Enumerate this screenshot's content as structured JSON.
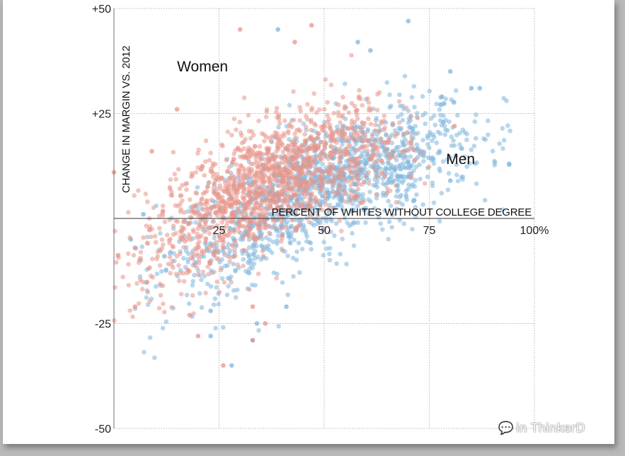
{
  "chart_data": {
    "type": "scatter",
    "ylabel": "CHANGE IN MARGIN VS. 2012",
    "xlabel": "PERCENT OF WHITES WITHOUT COLLEGE DEGREE",
    "xlim": [
      0,
      100
    ],
    "ylim": [
      -50,
      50
    ],
    "x_ticks": [
      {
        "value": 25,
        "label": "25"
      },
      {
        "value": 50,
        "label": "50"
      },
      {
        "value": 75,
        "label": "75"
      },
      {
        "value": 100,
        "label": "100%"
      }
    ],
    "y_ticks": [
      {
        "value": 50,
        "label": "+50"
      },
      {
        "value": 25,
        "label": "+25"
      },
      {
        "value": -25,
        "label": "-25"
      },
      {
        "value": -50,
        "label": "-50"
      }
    ],
    "grid": true,
    "grid_style": "dotted",
    "series": [
      {
        "name": "Men",
        "color": "#7fb6dc",
        "trend": {
          "x": [
            5,
            25,
            45,
            60,
            75,
            90
          ],
          "y": [
            -15,
            -6,
            6,
            12,
            16,
            20
          ]
        },
        "spread_x": [
          5,
          95
        ],
        "spread_y_sd": 7,
        "points": [
          {
            "x": 70,
            "y": 47
          },
          {
            "x": 39,
            "y": 45
          },
          {
            "x": 85,
            "y": 31
          },
          {
            "x": 80,
            "y": 35
          },
          {
            "x": 94,
            "y": 13
          },
          {
            "x": 80,
            "y": 9
          },
          {
            "x": 7,
            "y": 1
          },
          {
            "x": 4,
            "y": -5
          },
          {
            "x": 5,
            "y": -7
          },
          {
            "x": 12,
            "y": -9
          },
          {
            "x": 23,
            "y": -22
          },
          {
            "x": 23,
            "y": -28
          },
          {
            "x": 28,
            "y": -35
          },
          {
            "x": 34,
            "y": -25
          },
          {
            "x": 33,
            "y": -29
          },
          {
            "x": 41,
            "y": -21
          },
          {
            "x": 58,
            "y": 42
          },
          {
            "x": 61,
            "y": 40
          },
          {
            "x": 87,
            "y": 31
          },
          {
            "x": 78,
            "y": 29
          }
        ]
      },
      {
        "name": "Women",
        "color": "#e8958a",
        "trend": {
          "x": [
            0,
            20,
            35,
            50,
            65
          ],
          "y": [
            -12,
            -1,
            8,
            14,
            18
          ]
        },
        "spread_x": [
          0,
          75
        ],
        "spread_y_sd": 7,
        "points": [
          {
            "x": 30,
            "y": 45
          },
          {
            "x": 47,
            "y": 46
          },
          {
            "x": 43,
            "y": 42
          },
          {
            "x": 81,
            "y": 22
          },
          {
            "x": 0,
            "y": 11
          },
          {
            "x": 15,
            "y": 26
          },
          {
            "x": 9,
            "y": 16
          },
          {
            "x": 26,
            "y": -35
          },
          {
            "x": 33,
            "y": -21
          },
          {
            "x": 33,
            "y": -29
          },
          {
            "x": 18,
            "y": -23
          },
          {
            "x": 5,
            "y": -21
          },
          {
            "x": 36,
            "y": -25
          },
          {
            "x": 20,
            "y": -28
          }
        ]
      }
    ],
    "annotations": [
      {
        "text": "Women",
        "x": 15,
        "y": 35
      },
      {
        "text": "Men",
        "x": 79,
        "y": 13
      }
    ]
  },
  "watermark": {
    "icon": "wechat-icon",
    "text": "in ThinkerD"
  }
}
